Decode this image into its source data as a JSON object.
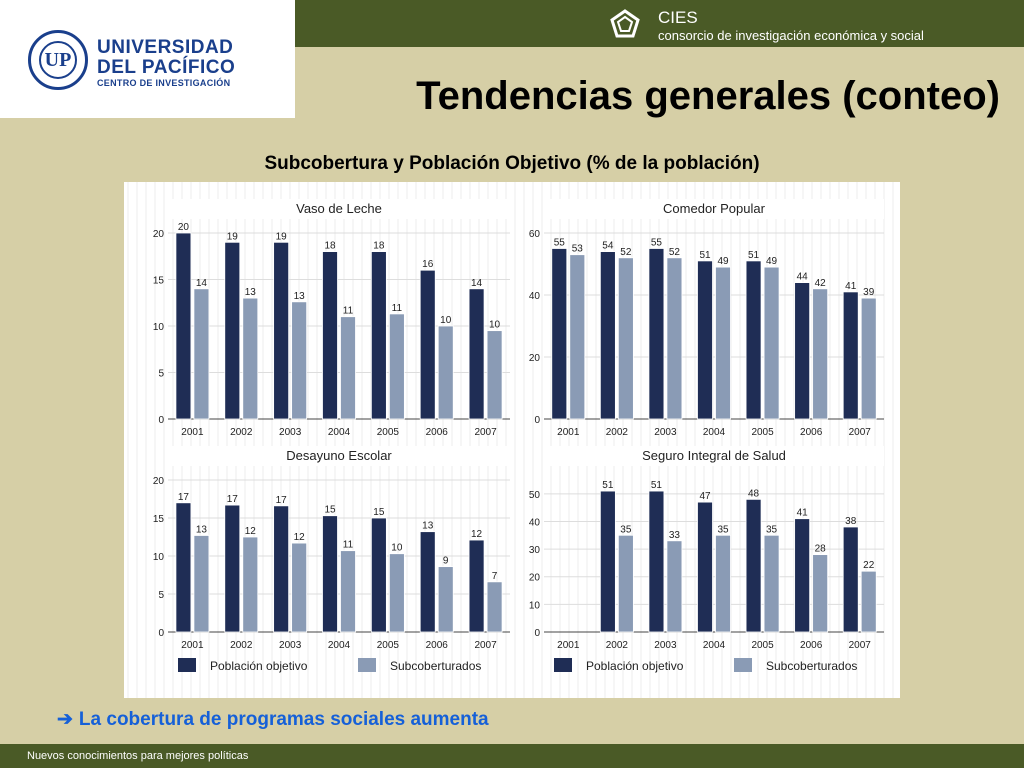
{
  "header": {
    "university_lines": [
      "UNIVERSIDAD",
      "DEL PACÍFICO",
      "CENTRO DE INVESTIGACIÓN"
    ],
    "seal_glyph": "UP",
    "seal_icon": "university-seal-icon",
    "partner_name": "CIES",
    "partner_tagline": "consorcio de investigación económica y social",
    "partner_icon": "pentagon-logo-icon"
  },
  "slide": {
    "title": "Tendencias generales (conteo)",
    "subtitle": "Subcobertura y Población Objetivo (% de la población)",
    "conclusion_icon": "right-arrow-icon",
    "conclusion_arrow": "➔",
    "conclusion": "La cobertura de programas sociales aumenta",
    "footer": "Nuevos conocimientos para mejores políticas"
  },
  "colors": {
    "poblacion_objetivo": "#1f2d55",
    "subcoberturados": "#8a9bb5",
    "header_bar": "#4a5a26",
    "background": "#d6cfa6",
    "conclusion": "#1560d8"
  },
  "chart_data": [
    {
      "type": "bar",
      "title": "Vaso de Leche",
      "categories": [
        "2001",
        "2002",
        "2003",
        "2004",
        "2005",
        "2006",
        "2007"
      ],
      "ylim": [
        0,
        20
      ],
      "yticks": [
        0,
        5,
        10,
        15,
        20
      ],
      "grid": true,
      "series": [
        {
          "name": "Población objetivo",
          "values": [
            20,
            19,
            19,
            18,
            18,
            16,
            14
          ],
          "value_labels": [
            "20",
            "19",
            "19",
            "18",
            "18",
            "16",
            "14"
          ]
        },
        {
          "name": "Subcoberturados",
          "values": [
            14,
            13,
            12.6,
            11,
            11.3,
            10,
            9.5
          ],
          "value_labels": [
            "14",
            "13",
            "13",
            "11",
            "11",
            "10",
            "10"
          ]
        }
      ]
    },
    {
      "type": "bar",
      "title": "Comedor Popular",
      "categories": [
        "2001",
        "2002",
        "2003",
        "2004",
        "2005",
        "2006",
        "2007"
      ],
      "ylim": [
        0,
        60
      ],
      "yticks": [
        0,
        20,
        40,
        60
      ],
      "grid": true,
      "series": [
        {
          "name": "Población objetivo",
          "values": [
            55,
            54,
            55,
            51,
            51,
            44,
            41
          ],
          "value_labels": [
            "55",
            "54",
            "55",
            "51",
            "51",
            "44",
            "41"
          ]
        },
        {
          "name": "Subcoberturados",
          "values": [
            53,
            52,
            52,
            49,
            49,
            42,
            39
          ],
          "value_labels": [
            "53",
            "52",
            "52",
            "49",
            "49",
            "42",
            "39"
          ]
        }
      ]
    },
    {
      "type": "bar",
      "title": "Desayuno Escolar",
      "categories": [
        "2001",
        "2002",
        "2003",
        "2004",
        "2005",
        "2006",
        "2007"
      ],
      "ylim": [
        0,
        20
      ],
      "yticks": [
        0,
        5,
        10,
        15,
        20
      ],
      "grid": true,
      "legend": "bottom",
      "series": [
        {
          "name": "Población objetivo",
          "values": [
            17,
            16.7,
            16.6,
            15.3,
            15,
            13.2,
            12.1
          ],
          "value_labels": [
            "17",
            "17",
            "17",
            "15",
            "15",
            "13",
            "12"
          ]
        },
        {
          "name": "Subcoberturados",
          "values": [
            12.7,
            12.5,
            11.7,
            10.7,
            10.3,
            8.6,
            6.6
          ],
          "value_labels": [
            "13",
            "12",
            "12",
            "11",
            "10",
            "9",
            "7"
          ]
        }
      ]
    },
    {
      "type": "bar",
      "title": "Seguro Integral de Salud",
      "categories": [
        "2001",
        "2002",
        "2003",
        "2004",
        "2005",
        "2006",
        "2007"
      ],
      "ylim": [
        0,
        55
      ],
      "yticks": [
        0,
        10,
        20,
        30,
        40,
        50
      ],
      "grid": true,
      "legend": "bottom",
      "series": [
        {
          "name": "Población objetivo",
          "values": [
            null,
            51,
            51,
            47,
            48,
            41,
            38
          ],
          "value_labels": [
            "",
            "51",
            "51",
            "47",
            "48",
            "41",
            "38"
          ]
        },
        {
          "name": "Subcoberturados",
          "values": [
            null,
            35,
            33,
            35,
            35,
            28,
            22
          ],
          "value_labels": [
            "",
            "35",
            "33",
            "35",
            "35",
            "28",
            "22"
          ]
        }
      ]
    }
  ],
  "legend": {
    "items": [
      "Población objetivo",
      "Subcoberturados"
    ]
  }
}
